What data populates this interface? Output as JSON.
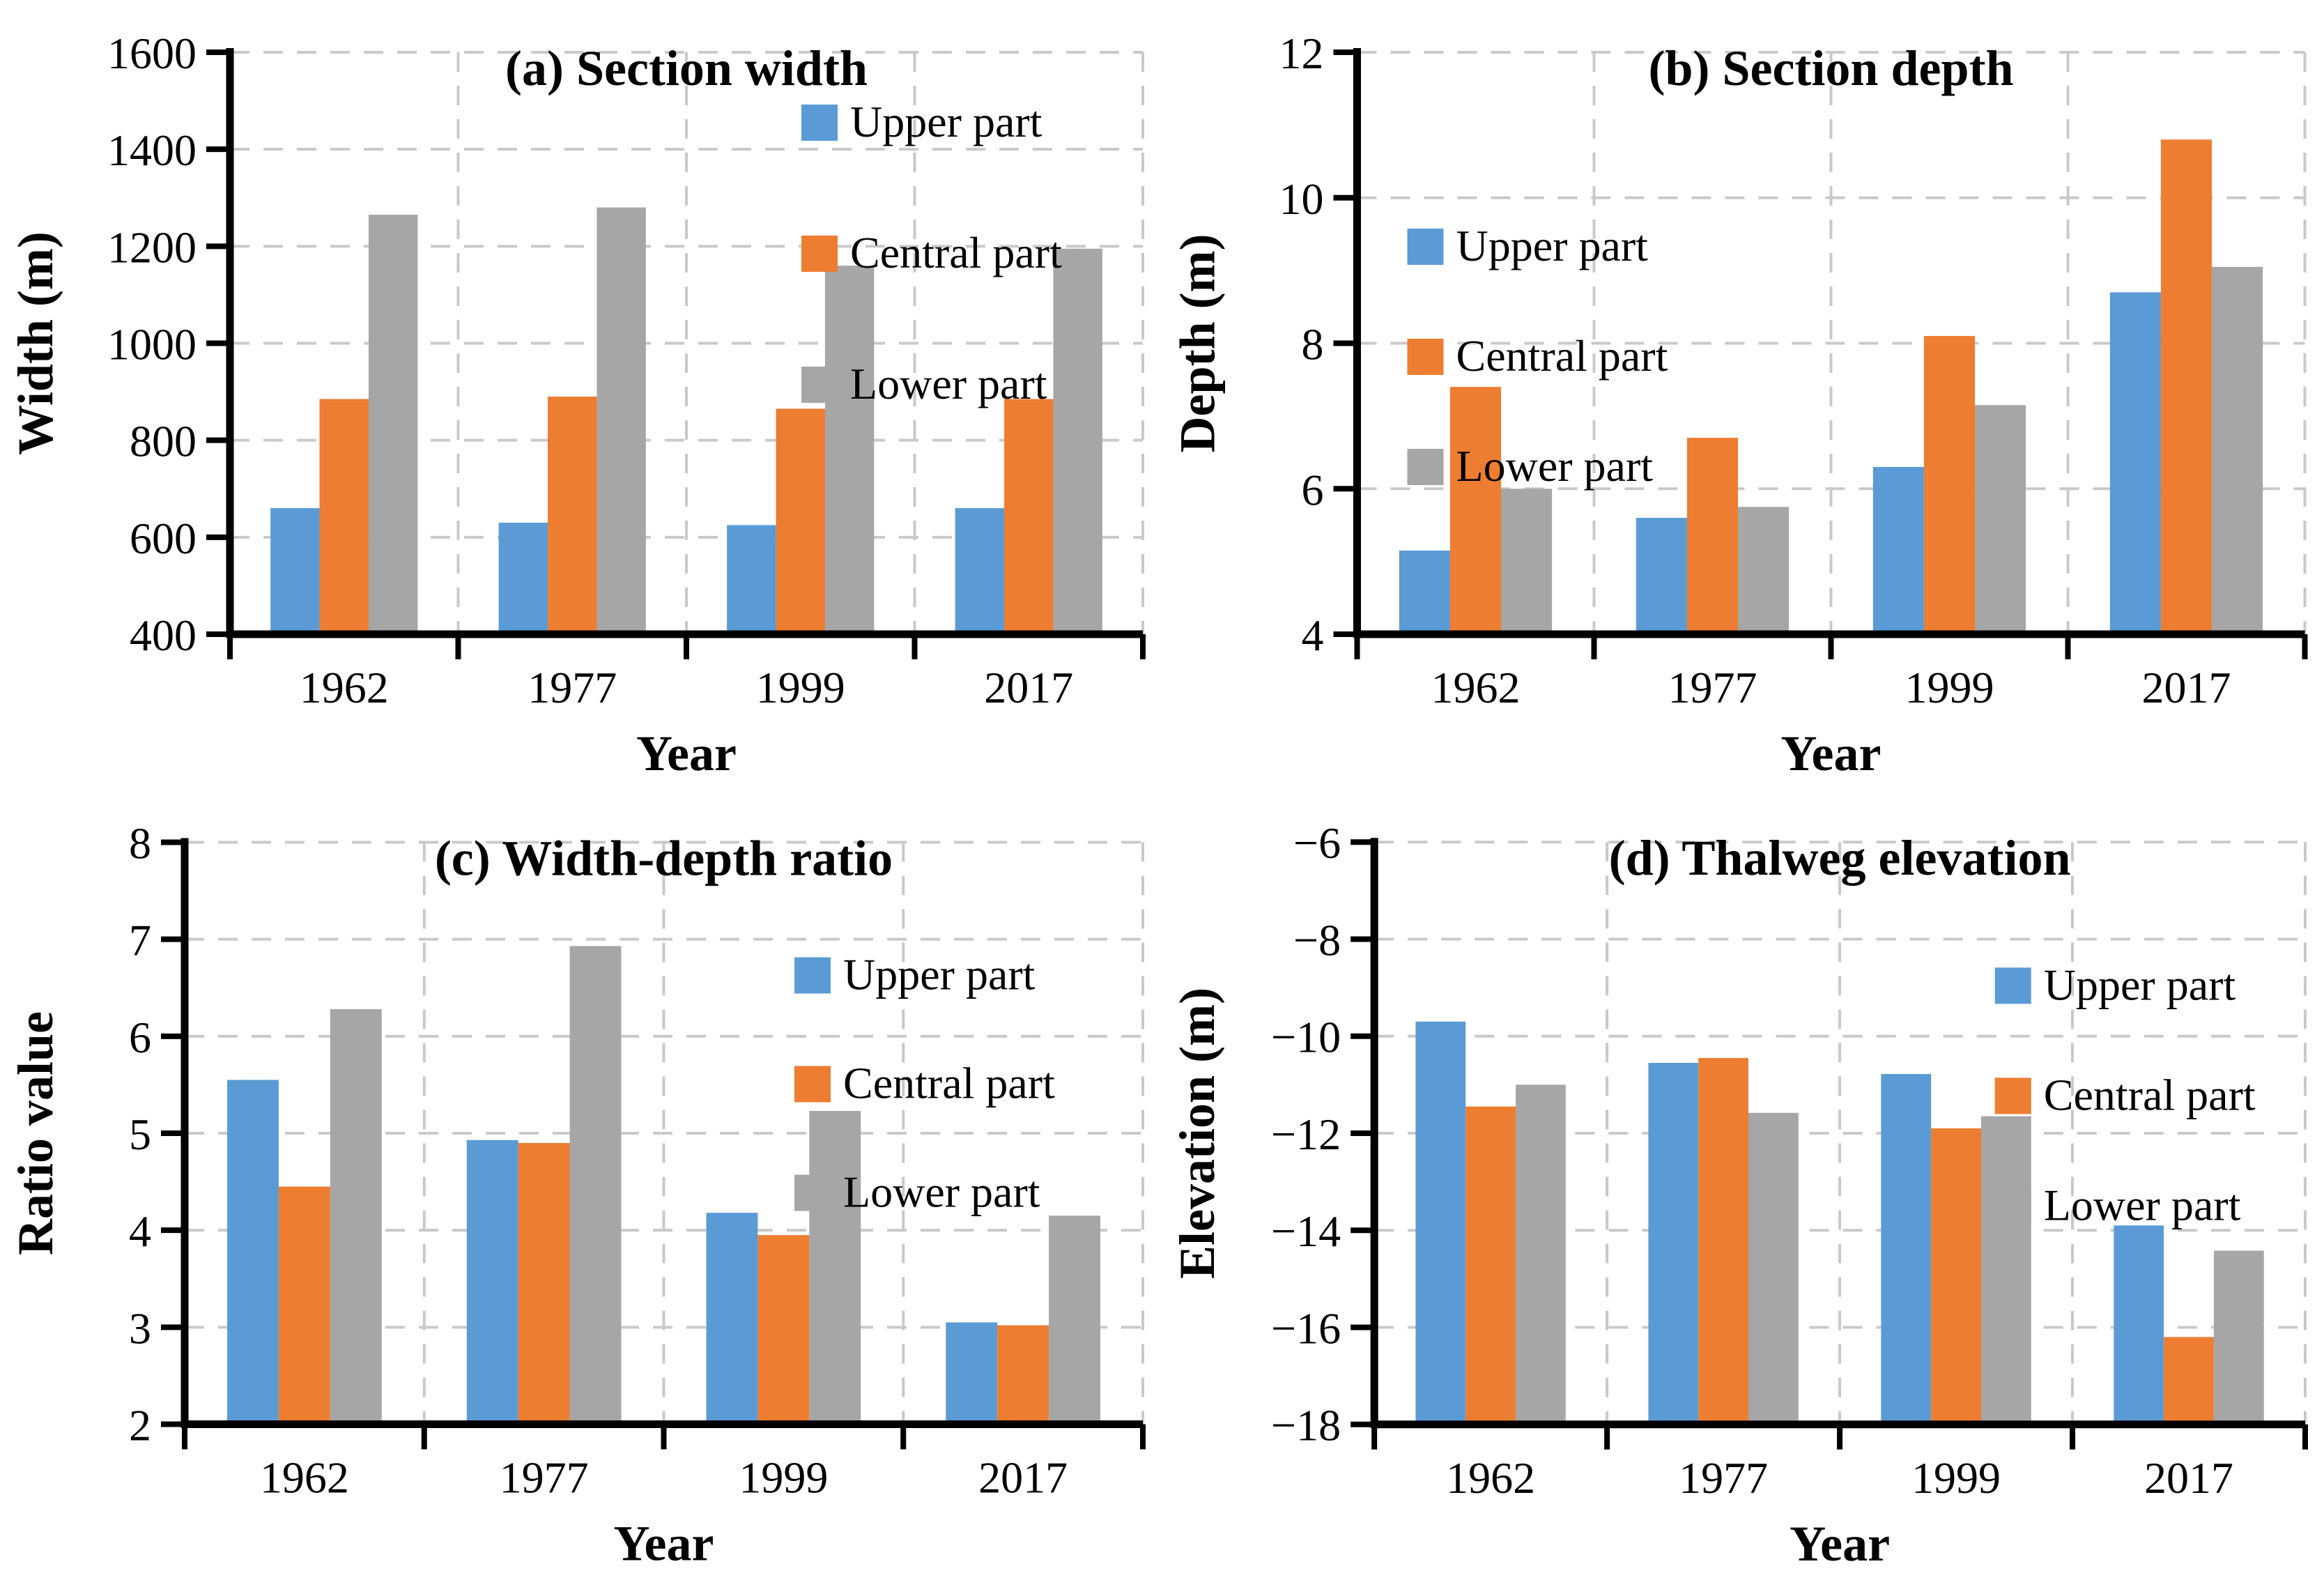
{
  "figure": {
    "background": "#ffffff",
    "series_labels": [
      "Upper part",
      "Central part",
      "Lower part"
    ],
    "series_colors": [
      "#5B9BD5",
      "#ED7D31",
      "#A6A6A6"
    ],
    "gridline_color": "#c9c9c9",
    "axis_color": "#000000",
    "categories": [
      "1962",
      "1977",
      "1999",
      "2017"
    ]
  },
  "chart_data": [
    {
      "type": "bar",
      "title": "(a) Section width",
      "xlabel": "Year",
      "ylabel": "Width (m)",
      "categories": [
        "1962",
        "1977",
        "1999",
        "2017"
      ],
      "series": [
        {
          "name": "Upper part",
          "color": "#5B9BD5",
          "values": [
            660,
            630,
            625,
            660
          ]
        },
        {
          "name": "Central part",
          "color": "#ED7D31",
          "values": [
            885,
            890,
            865,
            885
          ]
        },
        {
          "name": "Lower part",
          "color": "#A6A6A6",
          "values": [
            1265,
            1280,
            1160,
            1195
          ]
        }
      ],
      "ylim": [
        400,
        1600
      ],
      "ytick_step": 200,
      "grid": true,
      "legend_position": "top-right"
    },
    {
      "type": "bar",
      "title": "(b) Section depth",
      "xlabel": "Year",
      "ylabel": "Depth (m)",
      "categories": [
        "1962",
        "1977",
        "1999",
        "2017"
      ],
      "series": [
        {
          "name": "Upper part",
          "color": "#5B9BD5",
          "values": [
            5.15,
            5.6,
            6.3,
            8.7
          ]
        },
        {
          "name": "Central part",
          "color": "#ED7D31",
          "values": [
            7.4,
            6.7,
            8.1,
            10.8
          ]
        },
        {
          "name": "Lower part",
          "color": "#A6A6A6",
          "values": [
            6.0,
            5.75,
            7.15,
            9.05
          ]
        }
      ],
      "ylim": [
        4,
        12
      ],
      "ytick_step": 2,
      "grid": true,
      "legend_position": "upper-left"
    },
    {
      "type": "bar",
      "title": "(c) Width-depth ratio",
      "xlabel": "Year",
      "ylabel": "Ratio value",
      "categories": [
        "1962",
        "1977",
        "1999",
        "2017"
      ],
      "series": [
        {
          "name": "Upper part",
          "color": "#5B9BD5",
          "values": [
            5.55,
            4.93,
            4.18,
            3.05
          ]
        },
        {
          "name": "Central part",
          "color": "#ED7D31",
          "values": [
            4.45,
            4.9,
            3.95,
            3.02
          ]
        },
        {
          "name": "Lower part",
          "color": "#A6A6A6",
          "values": [
            6.28,
            6.93,
            5.23,
            4.15
          ]
        }
      ],
      "ylim": [
        2,
        8
      ],
      "ytick_step": 1,
      "grid": true,
      "legend_position": "top-right"
    },
    {
      "type": "bar",
      "title": "(d) Thalweg elevation",
      "xlabel": "Year",
      "ylabel": "Elevation (m)",
      "categories": [
        "1962",
        "1977",
        "1999",
        "2017"
      ],
      "series": [
        {
          "name": "Upper part",
          "color": "#5B9BD5",
          "values": [
            -9.7,
            -10.55,
            -10.78,
            -13.9
          ]
        },
        {
          "name": "Central part",
          "color": "#ED7D31",
          "values": [
            -11.45,
            -10.45,
            -11.9,
            -16.2
          ]
        },
        {
          "name": "Lower part",
          "color": "#A6A6A6",
          "values": [
            -11.0,
            -11.58,
            -11.65,
            -14.42
          ]
        }
      ],
      "ylim": [
        -18,
        -6
      ],
      "ytick_step": 2,
      "grid": true,
      "legend_position": "top-right"
    }
  ]
}
